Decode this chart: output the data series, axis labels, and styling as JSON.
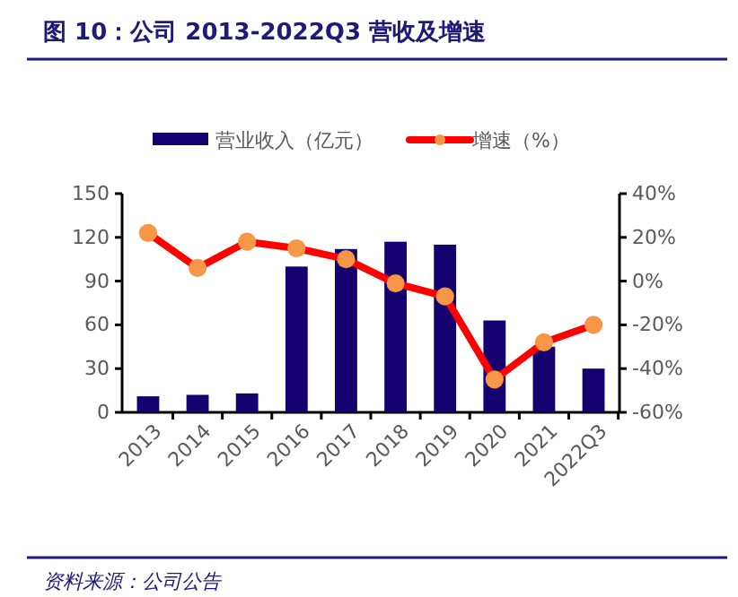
{
  "chart_data": {
    "type": "bar",
    "title": "图 10：公司 2013-2022Q3 营收及增速",
    "categories": [
      "2013",
      "2014",
      "2015",
      "2016",
      "2017",
      "2018",
      "2019",
      "2020",
      "2021",
      "2022Q3"
    ],
    "series": [
      {
        "name": "营业收入（亿元）",
        "color": "#14006e",
        "values": [
          11,
          12,
          13,
          100,
          112,
          117,
          115,
          63,
          45,
          30
        ]
      },
      {
        "name": "增速（%）",
        "type": "line",
        "axis": "y2",
        "color": "#ff0000",
        "values": [
          22,
          6,
          18,
          15,
          10,
          -1,
          -7,
          -45,
          -28,
          -20
        ]
      }
    ],
    "ylim": [
      0,
      150
    ],
    "yticks": [
      0,
      30,
      60,
      90,
      120,
      150
    ],
    "y2lim": [
      -60,
      40
    ],
    "y2ticks": [
      {
        "value": -60,
        "label": "-60%"
      },
      {
        "value": -40,
        "label": "-40%"
      },
      {
        "value": -20,
        "label": "-20%"
      },
      {
        "value": 0,
        "label": "0%"
      },
      {
        "value": 20,
        "label": "20%"
      },
      {
        "value": 40,
        "label": "40%"
      }
    ],
    "legend": "top",
    "marker": "circle",
    "line_style": "solid",
    "grid": false,
    "annotations": [
      "资料来源：公司公告"
    ]
  }
}
